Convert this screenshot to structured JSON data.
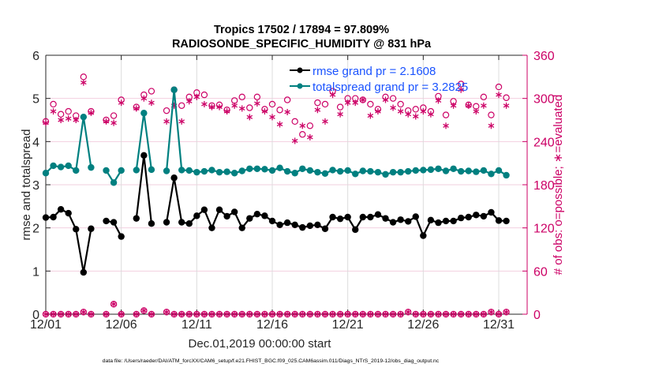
{
  "chart_data": {
    "type": "line",
    "title_line1": "Tropics 17502 / 17894 = 97.809%",
    "title_line2": "RADIOSONDE_SPECIFIC_HUMIDITY @ 831 hPa",
    "xlabel": "Dec.01,2019 00:00:00 start",
    "ylabel_left": "rmse and totalspread",
    "ylabel_right": "# of obs: o=possible; ∗=evaluated",
    "footnote": "data file: /Users/raeder/DAI/ATM_forcXX/CAM6_setup/f.e21.FHIST_BGC.f09_025.CAM6assim.011/Diags_NTrS_2019-12/obs_diag_output.nc",
    "x_tick_labels": [
      "12/01",
      "12/06",
      "12/11",
      "12/16",
      "12/21",
      "12/26",
      "12/31"
    ],
    "x_ticks_day": [
      0,
      5,
      10,
      15,
      20,
      25,
      30
    ],
    "x_range_days": [
      0,
      31
    ],
    "ylim_left": [
      0,
      6
    ],
    "yticks_left": [
      "0",
      "1",
      "2",
      "3",
      "4",
      "5",
      "6"
    ],
    "ylim_right": [
      0,
      360
    ],
    "yticks_right": [
      "0",
      "60",
      "120",
      "180",
      "240",
      "300",
      "360"
    ],
    "grid": "horizontal-right-axis, vertical-at-x-ticks",
    "legend_position": "top-right",
    "x_days": [
      0,
      0.5,
      1,
      1.5,
      2,
      2.5,
      3,
      3.5,
      4,
      4.5,
      5,
      5.5,
      6,
      6.5,
      7,
      7.5,
      8,
      8.5,
      9,
      9.5,
      10,
      10.5,
      11,
      11.5,
      12,
      12.5,
      13,
      13.5,
      14,
      14.5,
      15,
      15.5,
      16,
      16.5,
      17,
      17.5,
      18,
      18.5,
      19,
      19.5,
      20,
      20.5,
      21,
      21.5,
      22,
      22.5,
      23,
      23.5,
      24,
      24.5,
      25,
      25.5,
      26,
      26.5,
      27,
      27.5,
      28,
      28.5,
      29,
      29.5,
      30,
      30.5
    ],
    "series": [
      {
        "name": "rmse grand pr = 2.1608",
        "color": "#000000",
        "values": [
          2.24,
          2.25,
          2.43,
          2.34,
          1.97,
          0.97,
          1.98,
          null,
          2.16,
          2.13,
          1.8,
          null,
          2.22,
          3.68,
          2.1,
          null,
          2.13,
          3.16,
          2.13,
          2.1,
          2.28,
          2.42,
          2.0,
          2.42,
          2.27,
          2.37,
          2.0,
          2.22,
          2.32,
          2.28,
          2.16,
          2.07,
          2.12,
          2.07,
          2.01,
          2.05,
          2.07,
          1.98,
          2.25,
          2.21,
          2.25,
          1.96,
          2.25,
          2.25,
          2.31,
          2.22,
          2.13,
          2.19,
          2.15,
          2.26,
          1.82,
          2.18,
          2.12,
          2.16,
          2.16,
          2.23,
          2.25,
          2.3,
          2.27,
          2.36,
          2.17,
          2.16
        ]
      },
      {
        "name": "totalspread grand pr = 3.2825",
        "color": "#008080",
        "values": [
          3.27,
          3.44,
          3.41,
          3.44,
          3.33,
          4.57,
          3.4,
          null,
          3.33,
          3.05,
          3.33,
          null,
          3.34,
          4.66,
          3.35,
          null,
          3.32,
          5.2,
          3.34,
          3.33,
          3.29,
          3.31,
          3.34,
          3.29,
          3.3,
          3.27,
          3.32,
          3.37,
          3.37,
          3.36,
          3.33,
          3.39,
          3.31,
          3.27,
          3.37,
          3.33,
          3.29,
          3.26,
          3.34,
          3.31,
          3.33,
          3.25,
          3.32,
          3.31,
          3.29,
          3.24,
          3.29,
          3.29,
          3.31,
          3.33,
          3.34,
          3.35,
          3.37,
          3.32,
          3.37,
          3.31,
          3.32,
          3.3,
          3.33,
          3.25,
          3.33,
          3.22
        ]
      }
    ],
    "obs_possible": {
      "name": "o = possible",
      "color": "#cc0066",
      "values": [
        268,
        292,
        278,
        282,
        276,
        330,
        282,
        null,
        270,
        276,
        298,
        null,
        288,
        305,
        310,
        null,
        283,
        312,
        290,
        302,
        308,
        305,
        290,
        291,
        284,
        297,
        302,
        287,
        302,
        285,
        292,
        284,
        298,
        268,
        250,
        262,
        294,
        292,
        310,
        288,
        300,
        300,
        298,
        292,
        285,
        302,
        300,
        292,
        283,
        285,
        287,
        282,
        303,
        277,
        296,
        320,
        291,
        289,
        302,
        277,
        316,
        301
      ]
    },
    "obs_evaluated": {
      "name": "* = evaluated",
      "color": "#cc0066",
      "values": [
        266,
        282,
        270,
        272,
        270,
        322,
        280,
        null,
        268,
        266,
        294,
        null,
        286,
        300,
        294,
        null,
        268,
        290,
        268,
        296,
        302,
        292,
        288,
        288,
        282,
        290,
        286,
        274,
        293,
        282,
        274,
        264,
        281,
        241,
        262,
        246,
        284,
        268,
        305,
        278,
        294,
        294,
        298,
        276,
        282,
        298,
        287,
        282,
        278,
        275,
        282,
        278,
        297,
        262,
        290,
        312,
        290,
        282,
        290,
        262,
        305,
        290
      ]
    },
    "obs_zero_row_possible": [
      0,
      0,
      0,
      0,
      0,
      3,
      0,
      null,
      0,
      14,
      0,
      null,
      0,
      5,
      0,
      null,
      3,
      0,
      0,
      0,
      0,
      0,
      0,
      0,
      0,
      0,
      0,
      0,
      0,
      0,
      0,
      0,
      0,
      0,
      0,
      0,
      0,
      0,
      0,
      0,
      0,
      0,
      0,
      0,
      0,
      0,
      0,
      0,
      3,
      0,
      0,
      0,
      0,
      0,
      0,
      0,
      0,
      0,
      0,
      3,
      0,
      3
    ]
  }
}
